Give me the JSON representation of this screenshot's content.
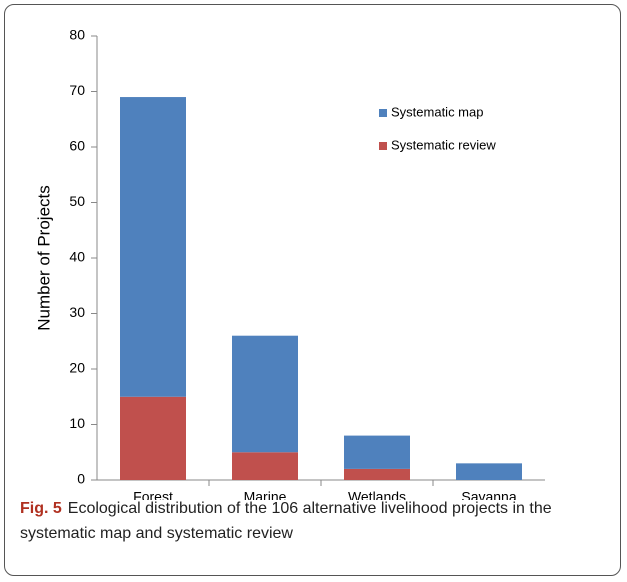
{
  "chart_data": {
    "type": "bar",
    "stacked": true,
    "y_label": "Number of Projects",
    "categories": [
      "Forest",
      "Marine",
      "Wetlands",
      "Savanna"
    ],
    "series": [
      {
        "name": "Systematic review",
        "color": "#c0504d",
        "values": [
          15,
          5,
          2,
          0
        ]
      },
      {
        "name": "Systematic map",
        "color": "#4f81bd",
        "values": [
          54,
          21,
          6,
          3
        ]
      }
    ],
    "ylim": [
      0,
      80
    ],
    "yticks": [
      0,
      10,
      20,
      30,
      40,
      50,
      60,
      70,
      80
    ],
    "grid": false,
    "legend": "upper right"
  },
  "caption": {
    "label": "Fig. 5",
    "text": "Ecological distribution of the 106 alternative livelihood projects in the systematic map and systematic review"
  }
}
